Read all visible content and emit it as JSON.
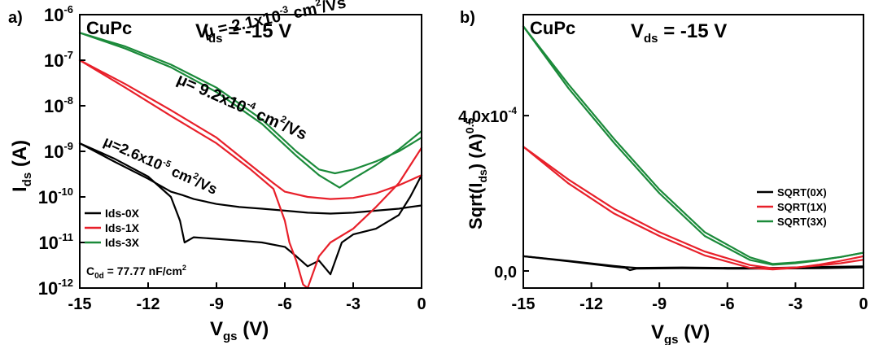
{
  "chart_data": [
    {
      "panel": "a)",
      "type": "line",
      "material": "CuPc",
      "vds": {
        "v": "V",
        "sub": "ds",
        "rest": " = -15 V"
      },
      "xlabel": {
        "v": "V",
        "sub": "gs",
        "rest": " (V)"
      },
      "ylabel": {
        "v": "I",
        "sub": "ds",
        "rest": " (A)"
      },
      "y_scale": "log",
      "xlim": [
        -15,
        0
      ],
      "ylim": [
        1e-12,
        1e-06
      ],
      "x_ticks": [
        "-15",
        "-12",
        "-9",
        "-6",
        "-3",
        "0"
      ],
      "y_ticks": [
        {
          "exp": -12,
          "base": "10",
          "sup": "-12"
        },
        {
          "exp": -11,
          "base": "10",
          "sup": "-11"
        },
        {
          "exp": -10,
          "base": "10",
          "sup": "-10"
        },
        {
          "exp": -9,
          "base": "10",
          "sup": "-9"
        },
        {
          "exp": -8,
          "base": "10",
          "sup": "-8"
        },
        {
          "exp": -7,
          "base": "10",
          "sup": "-7"
        },
        {
          "exp": -6,
          "base": "10",
          "sup": "-6"
        }
      ],
      "legend_position": "bottom-left",
      "series": [
        {
          "name": "Ids-0X",
          "color": "#000000",
          "x": [
            -15,
            -13.5,
            -12,
            -11,
            -10.5,
            -10,
            -9,
            -8,
            -7,
            -6,
            -5,
            -4,
            -3,
            -2,
            -1,
            -0.5,
            0
          ],
          "y": [
            1.5e-09,
            6e-10,
            2.5e-10,
            1.3e-10,
            1.1e-10,
            9e-11,
            7e-11,
            6e-11,
            5.5e-11,
            5e-11,
            4.5e-11,
            4.3e-11,
            4.5e-11,
            5e-11,
            5.5e-11,
            6e-11,
            6.5e-11
          ]
        },
        {
          "name": "Ids-0X",
          "legend": false,
          "color": "#000000",
          "x": [
            -15,
            -13.5,
            -12,
            -11,
            -10.6,
            -10.4,
            -10,
            -9,
            -8,
            -7,
            -6,
            -5.5,
            -5,
            -4.5,
            -4,
            -3.5,
            -3,
            -2,
            -1,
            -0.5,
            0
          ],
          "y": [
            1.5e-09,
            7e-10,
            2.8e-10,
            1e-10,
            3e-11,
            1e-11,
            1.3e-11,
            1.2e-11,
            1.1e-11,
            1e-11,
            8e-12,
            5e-12,
            3e-12,
            4e-12,
            2e-12,
            1e-11,
            1.5e-11,
            2e-11,
            4e-11,
            1e-10,
            3e-10
          ]
        },
        {
          "name": "Ids-1X",
          "color": "#e8202a",
          "x": [
            -15,
            -13,
            -11,
            -9,
            -7.5,
            -6.5,
            -6,
            -5,
            -4,
            -3,
            -2,
            -1,
            0
          ],
          "y": [
            1e-07,
            3e-08,
            8e-09,
            2e-09,
            5e-10,
            2e-10,
            1.3e-10,
            1e-10,
            9e-11,
            9.5e-11,
            1.2e-10,
            1.8e-10,
            3e-10
          ]
        },
        {
          "name": "Ids-1X",
          "legend": false,
          "color": "#e8202a",
          "x": [
            -15,
            -13,
            -11,
            -9,
            -7.5,
            -6.5,
            -6,
            -5.8,
            -5.5,
            -5.2,
            -5,
            -4.5,
            -4,
            -3,
            -2,
            -1,
            0
          ],
          "y": [
            1e-07,
            2.5e-08,
            6e-09,
            1.5e-09,
            4e-10,
            1.5e-10,
            3e-11,
            1e-11,
            4e-12,
            1.2e-12,
            1e-12,
            5e-12,
            1e-11,
            2e-11,
            6e-11,
            2e-10,
            1.2e-09
          ]
        },
        {
          "name": "Ids-3X",
          "color": "#1b8a3a",
          "x": [
            -15,
            -13,
            -11,
            -9,
            -7,
            -5.5,
            -4.5,
            -3.8,
            -3,
            -2,
            -1,
            0
          ],
          "y": [
            4e-07,
            2e-07,
            8e-08,
            2.5e-08,
            5e-09,
            1e-09,
            4e-10,
            3.3e-10,
            4e-10,
            6e-10,
            1e-09,
            2e-09
          ]
        },
        {
          "name": "Ids-3X",
          "legend": false,
          "color": "#1b8a3a",
          "x": [
            -15,
            -13,
            -11,
            -9,
            -7,
            -5.5,
            -4.5,
            -3.6,
            -3,
            -2,
            -1,
            0
          ],
          "y": [
            4e-07,
            1.8e-07,
            7e-08,
            2e-08,
            4e-09,
            8e-10,
            3e-10,
            1.6e-10,
            2.5e-10,
            5e-10,
            1.1e-09,
            2.8e-09
          ]
        }
      ],
      "annotations": [
        {
          "key": "mu3",
          "color": "#1b8a3a",
          "base": "μ = 2.1x10",
          "sup": "-3",
          "unit1": " cm",
          "unit_sup": "2",
          "unit2": "/Vs"
        },
        {
          "key": "mu1",
          "color": "#e8202a",
          "base": "μ= 9.2x10",
          "sup": "-4",
          "unit1": " cm",
          "unit_sup": "2",
          "unit2": "/Vs"
        },
        {
          "key": "mu0",
          "color": "#000000",
          "base": "μ=2.6x10",
          "sup": "-5",
          "unit1": " cm",
          "unit_sup": "2",
          "unit2": "/Vs"
        }
      ],
      "capacitance": {
        "c": "C",
        "sub": "0d",
        "rest": " = 77.77 nF/cm",
        "sup": "2",
        "color": "#8b1a1a"
      }
    },
    {
      "panel": "b)",
      "type": "line",
      "material": "CuPc",
      "vds": {
        "v": "V",
        "sub": "ds",
        "rest": " = -15 V"
      },
      "xlabel": {
        "v": "V",
        "sub": "gs",
        "rest": " (V)"
      },
      "ylabel": {
        "pre": "Sqrt(I",
        "sub": "ds",
        "mid": ") (A)",
        "sup": "0.5"
      },
      "xlim": [
        -15,
        0
      ],
      "ylim": [
        -4.4e-05,
        0.00066
      ],
      "x_ticks": [
        "-15",
        "-12",
        "-9",
        "-6",
        "-3",
        "0"
      ],
      "y_ticks": [
        {
          "value": 0,
          "base": "0,0"
        },
        {
          "value": 0.0004,
          "base": "4,0x10",
          "sup": "-4"
        }
      ],
      "legend_position": "middle-right",
      "series": [
        {
          "name": "SQRT(0X)",
          "color": "#000000",
          "x": [
            -15,
            -13,
            -11,
            -10.5,
            -10.3,
            -10,
            -8,
            -6,
            -4,
            -2,
            0
          ],
          "y": [
            3.8e-05,
            2.5e-05,
            1.1e-05,
            8e-06,
            2e-06,
            6e-06,
            7e-06,
            6e-06,
            6e-06,
            7e-06,
            9e-06
          ]
        },
        {
          "name": "SQRT(0X)",
          "legend": false,
          "color": "#000000",
          "x": [
            -15,
            -13,
            -11,
            -10.5,
            -10,
            -8,
            -6,
            -4,
            -2,
            0
          ],
          "y": [
            3.8e-05,
            2.6e-05,
            1.3e-05,
            1e-05,
            8e-06,
            9e-06,
            8e-06,
            8e-06,
            1e-05,
            1.2e-05
          ]
        },
        {
          "name": "SQRT(1X)",
          "color": "#e8202a",
          "x": [
            -15,
            -13,
            -11,
            -9,
            -7,
            -5,
            -4,
            -3,
            -2,
            -1,
            0
          ],
          "y": [
            0.00032,
            0.000235,
            0.00016,
            0.0001,
            5e-05,
            1.5e-05,
            7e-06,
            9e-06,
            1.4e-05,
            2e-05,
            2.9e-05
          ]
        },
        {
          "name": "SQRT(1X)",
          "legend": false,
          "color": "#e8202a",
          "x": [
            -15,
            -13,
            -11,
            -9,
            -7,
            -5,
            -4,
            -3,
            -2,
            -1,
            0
          ],
          "y": [
            0.00032,
            0.000225,
            0.000148,
            9e-05,
            4e-05,
            8e-06,
            4e-06,
            8e-06,
            1.6e-05,
            2.6e-05,
            3.8e-05
          ]
        },
        {
          "name": "SQRT(3X)",
          "color": "#1b8a3a",
          "x": [
            -15,
            -13,
            -11,
            -9,
            -7,
            -5,
            -4,
            -3,
            -2,
            -1,
            0
          ],
          "y": [
            0.00063,
            0.00048,
            0.00034,
            0.00021,
            0.0001,
            3.5e-05,
            1.8e-05,
            2.2e-05,
            2.8e-05,
            3.6e-05,
            4.7e-05
          ]
        },
        {
          "name": "SQRT(3X)",
          "legend": false,
          "color": "#1b8a3a",
          "x": [
            -15,
            -13,
            -11,
            -9,
            -7,
            -5,
            -4,
            -3,
            -2,
            -1,
            0
          ],
          "y": [
            0.00063,
            0.00047,
            0.00033,
            0.0002,
            9e-05,
            2.8e-05,
            1.6e-05,
            2e-05,
            2.7e-05,
            3.6e-05,
            4.7e-05
          ]
        }
      ]
    }
  ]
}
